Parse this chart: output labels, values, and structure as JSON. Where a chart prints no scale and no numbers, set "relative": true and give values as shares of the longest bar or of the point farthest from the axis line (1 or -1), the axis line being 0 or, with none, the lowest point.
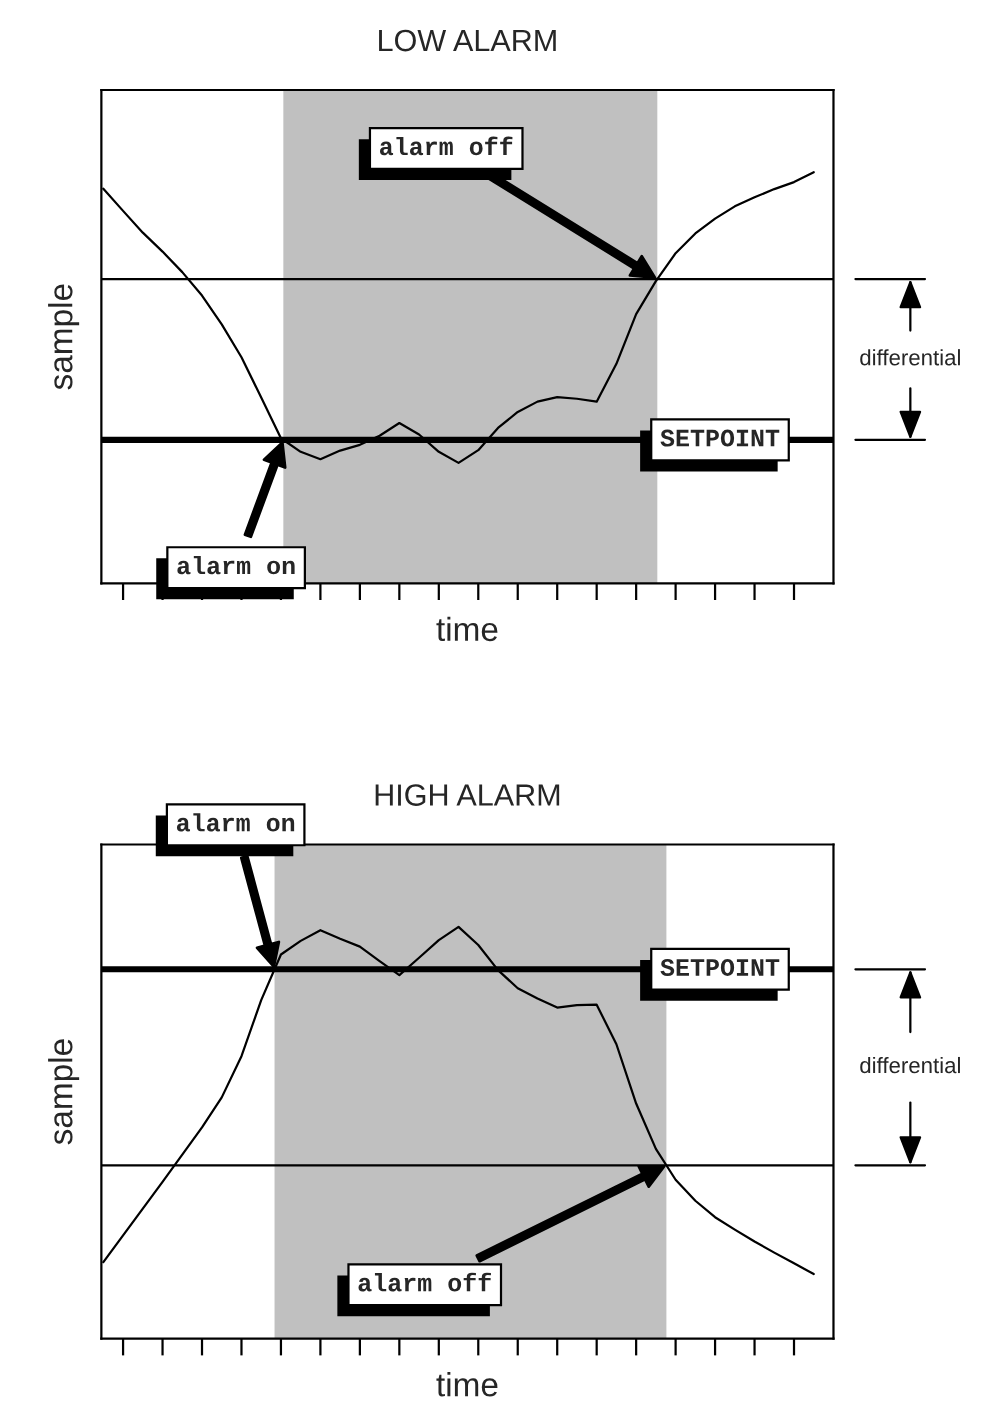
{
  "chart_data": [
    {
      "type": "line",
      "title": "LOW ALARM",
      "xlabel": "time",
      "ylabel": "sample",
      "relative": true,
      "tick_labels": false,
      "grid": false,
      "legend": false,
      "marker": "none",
      "line_style": "solid",
      "categories": [
        null,
        null,
        null,
        null,
        null,
        null,
        null,
        null,
        null,
        null,
        null,
        null,
        null,
        null,
        null,
        null,
        null,
        null,
        null,
        null,
        null,
        null,
        null,
        null,
        null,
        null,
        null,
        null,
        null,
        null,
        null,
        null,
        null,
        null,
        null,
        null,
        null
      ],
      "series": [
        {
          "color": "#000000",
          "values": [
            0.96,
            0.906,
            0.853,
            0.807,
            0.757,
            0.7,
            0.63,
            0.55,
            0.452,
            0.353,
            0.32,
            0.302,
            0.323,
            0.337,
            0.359,
            0.39,
            0.362,
            0.32,
            0.293,
            0.324,
            0.378,
            0.417,
            0.442,
            0.453,
            0.449,
            0.442,
            0.534,
            0.655,
            0.735,
            0.803,
            0.851,
            0.887,
            0.917,
            0.939,
            0.959,
            0.976,
            1.0
          ]
        }
      ],
      "ref_lines": [
        {
          "axis": "y",
          "value": 0.74,
          "color": "#000000"
        },
        {
          "axis": "y",
          "value": 0.349,
          "label": "SETPOINT",
          "color": "#000000"
        }
      ],
      "annotations": [
        "alarm on",
        "alarm off",
        "differential"
      ]
    },
    {
      "type": "line",
      "title": "HIGH ALARM",
      "xlabel": "time",
      "ylabel": "sample",
      "relative": true,
      "tick_labels": false,
      "grid": false,
      "legend": false,
      "marker": "none",
      "line_style": "solid",
      "categories": [
        null,
        null,
        null,
        null,
        null,
        null,
        null,
        null,
        null,
        null,
        null,
        null,
        null,
        null,
        null,
        null,
        null,
        null,
        null,
        null,
        null,
        null,
        null,
        null,
        null,
        null,
        null,
        null,
        null,
        null,
        null,
        null,
        null,
        null,
        null,
        null,
        null
      ],
      "series": [
        {
          "color": "#000000",
          "values": [
            0.186,
            0.251,
            0.316,
            0.381,
            0.447,
            0.513,
            0.586,
            0.686,
            0.822,
            0.933,
            0.966,
            0.992,
            0.971,
            0.952,
            0.917,
            0.883,
            0.925,
            0.968,
            1.0,
            0.956,
            0.895,
            0.851,
            0.826,
            0.804,
            0.81,
            0.811,
            0.715,
            0.571,
            0.461,
            0.386,
            0.335,
            0.295,
            0.265,
            0.236,
            0.209,
            0.183,
            0.157
          ]
        }
      ],
      "ref_lines": [
        {
          "axis": "y",
          "value": 0.897,
          "label": "SETPOINT",
          "color": "#000000"
        },
        {
          "axis": "y",
          "value": 0.421,
          "color": "#000000"
        }
      ],
      "annotations": [
        "alarm on",
        "alarm off",
        "differential"
      ]
    }
  ]
}
